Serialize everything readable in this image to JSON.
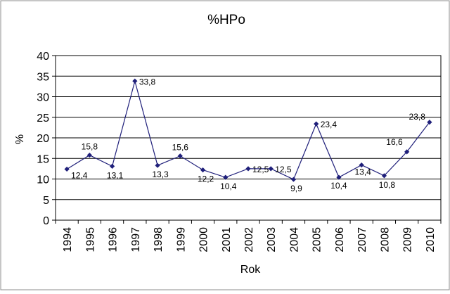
{
  "chart_data": {
    "type": "line",
    "title": "%HPo",
    "xlabel": "Rok",
    "ylabel": "%",
    "ylim": [
      0,
      40
    ],
    "yticks": [
      "0",
      "5",
      "10",
      "15",
      "20",
      "25",
      "30",
      "35",
      "40"
    ],
    "categories": [
      "1994",
      "1995",
      "1996",
      "1997",
      "1998",
      "1999",
      "2000",
      "2001",
      "2002",
      "2003",
      "2004",
      "2005",
      "2006",
      "2007",
      "2008",
      "2009",
      "2010"
    ],
    "series": [
      {
        "values": [
          12.4,
          15.8,
          13.1,
          33.8,
          13.3,
          15.6,
          12.2,
          10.4,
          12.5,
          12.5,
          9.9,
          23.4,
          10.4,
          13.4,
          10.8,
          16.6,
          23.8
        ],
        "labels": [
          "12,4",
          "15,8",
          "13,1",
          "33,8",
          "13,3",
          "15,6",
          "12,2",
          "10,4",
          "12,5",
          "12,5",
          "9,9",
          "23,4",
          "10,4",
          "13,4",
          "10,8",
          "16,6",
          "23,8"
        ]
      }
    ],
    "grid": true,
    "legend": "none",
    "colors": {
      "series": "#1f1f7a",
      "grid": "#000000",
      "border": "#8c8c8c"
    }
  }
}
